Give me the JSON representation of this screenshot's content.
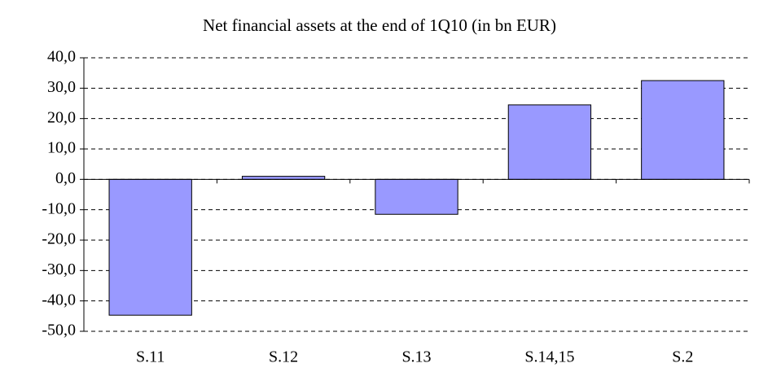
{
  "chart_data": {
    "type": "bar",
    "title": "Net financial assets at the end of 1Q10 (in bn EUR)",
    "categories": [
      "S.11",
      "S.12",
      "S.13",
      "S.14,15",
      "S.2"
    ],
    "values": [
      -44.7,
      1.0,
      -11.5,
      24.5,
      32.5
    ],
    "color": "#9999ff",
    "ylim": [
      -50,
      40
    ],
    "yticks": [
      {
        "value": -50,
        "label": "-50,0"
      },
      {
        "value": -40,
        "label": "-40,0"
      },
      {
        "value": -30,
        "label": "-30,0"
      },
      {
        "value": -20,
        "label": "-20,0"
      },
      {
        "value": -10,
        "label": "-10,0"
      },
      {
        "value": 0,
        "label": "0,0"
      },
      {
        "value": 10,
        "label": "10,0"
      },
      {
        "value": 20,
        "label": "20,0"
      },
      {
        "value": 30,
        "label": "30,0"
      },
      {
        "value": 40,
        "label": "40,0"
      }
    ],
    "grid": true
  }
}
